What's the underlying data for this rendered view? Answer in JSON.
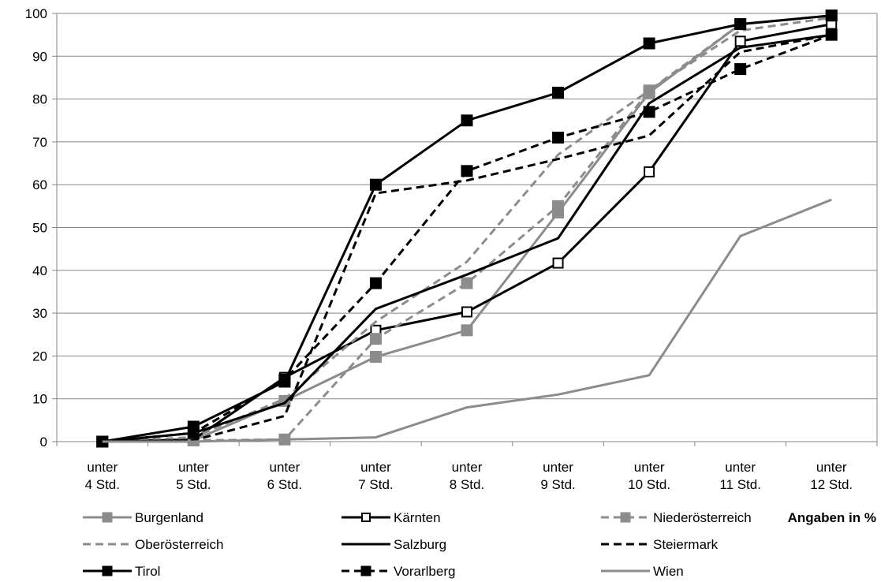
{
  "chart_data": {
    "type": "line",
    "categories": [
      [
        "unter",
        "4 Std."
      ],
      [
        "unter",
        "5 Std."
      ],
      [
        "unter",
        "6 Std."
      ],
      [
        "unter",
        "7 Std."
      ],
      [
        "unter",
        "8 Std."
      ],
      [
        "unter",
        "9 Std."
      ],
      [
        "unter",
        "10 Std."
      ],
      [
        "unter",
        "11 Std."
      ],
      [
        "unter",
        "12 Std."
      ]
    ],
    "ylim": [
      0,
      100
    ],
    "yticks": [
      0,
      10,
      20,
      30,
      40,
      50,
      60,
      70,
      80,
      90,
      100
    ],
    "grid": true,
    "legend_position": "bottom",
    "note": "Angaben in %",
    "series": [
      {
        "name": "Burgenland",
        "color": "#8c8c8c",
        "dash": "solid",
        "marker": "square-filled",
        "values": [
          0,
          0.3,
          9.5,
          19.8,
          26,
          53.5,
          81.5,
          97.5,
          99.5
        ]
      },
      {
        "name": "Kärnten",
        "color": "#000000",
        "dash": "solid",
        "marker": "square-open",
        "values": [
          0,
          0.5,
          15,
          26,
          30.3,
          41.7,
          63,
          93.5,
          97.5
        ]
      },
      {
        "name": "Niederösterreich",
        "color": "#8c8c8c",
        "dash": "dashed",
        "marker": "square-filled",
        "values": [
          0,
          0.3,
          0.5,
          24,
          37,
          55,
          82,
          97.5,
          99.5
        ]
      },
      {
        "name": "Oberösterreich",
        "color": "#8c8c8c",
        "dash": "dashed",
        "marker": "none",
        "values": [
          0,
          1,
          10,
          28,
          42,
          67,
          82,
          96,
          99
        ]
      },
      {
        "name": "Salzburg",
        "color": "#000000",
        "dash": "solid",
        "marker": "none",
        "values": [
          0,
          2,
          9,
          31,
          39,
          47.5,
          79,
          92,
          95
        ]
      },
      {
        "name": "Steiermark",
        "color": "#000000",
        "dash": "dashed",
        "marker": "none",
        "values": [
          0,
          0.3,
          6,
          58,
          61,
          66,
          71.5,
          91,
          95
        ]
      },
      {
        "name": "Tirol",
        "color": "#000000",
        "dash": "solid",
        "marker": "square-filled",
        "values": [
          0,
          3.5,
          14,
          60,
          75,
          81.5,
          93,
          97.5,
          99.5
        ]
      },
      {
        "name": "Vorarlberg",
        "color": "#000000",
        "dash": "dashed",
        "marker": "square-filled",
        "values": [
          0,
          2,
          14.5,
          37,
          63.2,
          71,
          77,
          87,
          95
        ]
      },
      {
        "name": "Wien",
        "color": "#8c8c8c",
        "dash": "solid",
        "marker": "none",
        "values": [
          0,
          0,
          0.5,
          1,
          8,
          11,
          15.5,
          48,
          56.5
        ]
      }
    ]
  }
}
